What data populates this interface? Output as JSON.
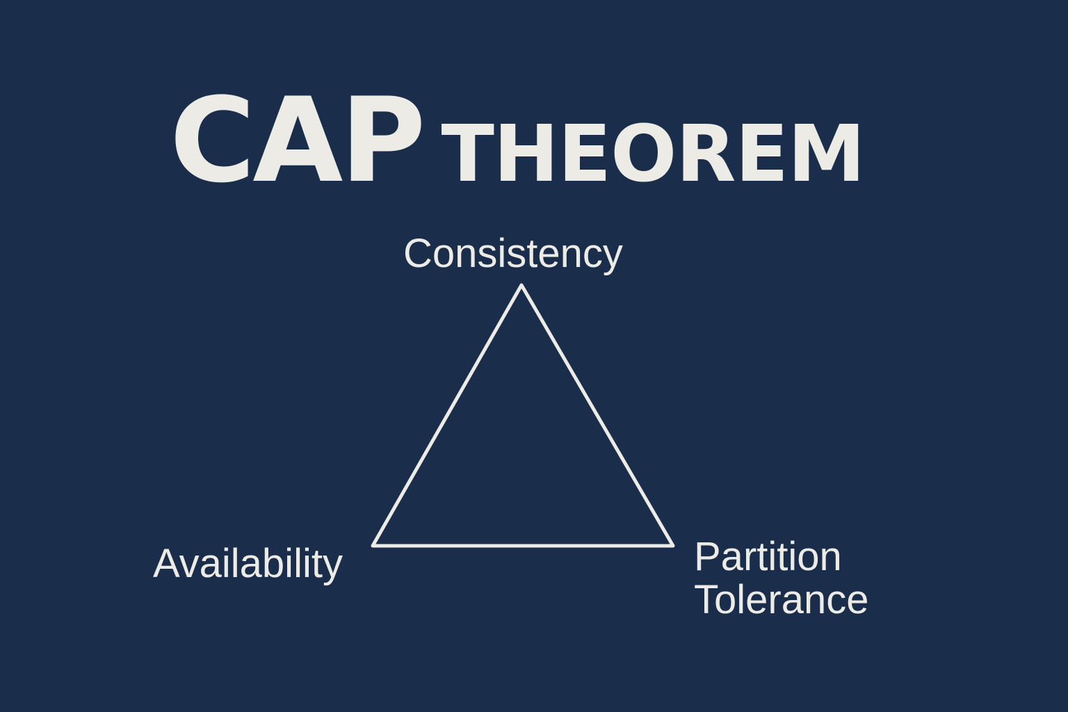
{
  "colors": {
    "background": "#1a2d4a",
    "foreground": "#ecebe6"
  },
  "title": {
    "main": "CAP",
    "sub": "THEOREM"
  },
  "diagram": {
    "shape": "triangle",
    "vertices": {
      "top": "Consistency",
      "bottom_left": "Availability",
      "bottom_right_line1": "Partition",
      "bottom_right_line2": "Tolerance"
    }
  }
}
